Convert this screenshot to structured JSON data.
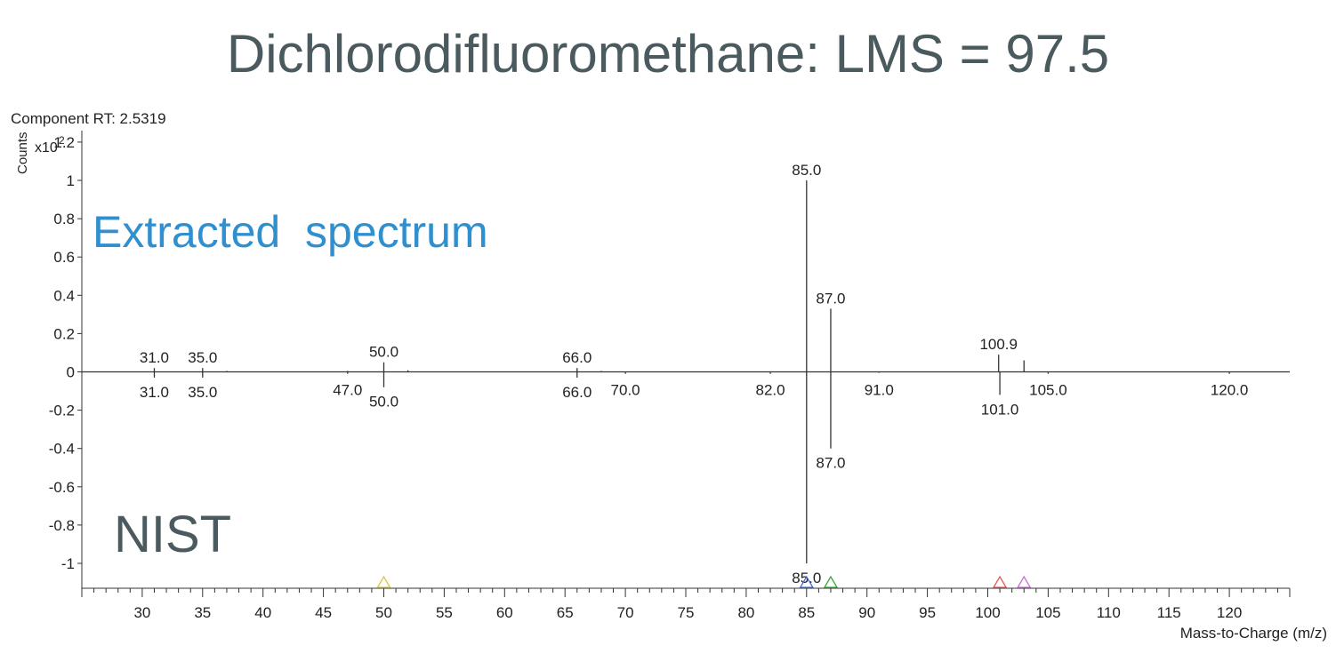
{
  "title": "Dichlorodifluoromethane: LMS = 97.5",
  "component_label": "Component RT: 2.5319",
  "y_axis_label": "Counts",
  "y_scale_label": "x10",
  "y_scale_exp": "2",
  "x_axis_label": "Mass-to-Charge (m/z)",
  "upper_label": "Extracted  spectrum",
  "lower_label": "NIST",
  "colors": {
    "upper_label": "#2f8fcf",
    "lower_label": "#4a5a5e",
    "title": "#4a5a5e",
    "axis": "#333333"
  },
  "chart_data": {
    "type": "bar",
    "xlim": [
      25,
      125
    ],
    "ylim": [
      -1.13,
      1.26
    ],
    "x_ticks": [
      30,
      35,
      40,
      45,
      50,
      55,
      60,
      65,
      70,
      75,
      80,
      85,
      90,
      95,
      100,
      105,
      110,
      115,
      120
    ],
    "y_ticks": [
      {
        "v": 1.2,
        "label": "1.2"
      },
      {
        "v": 1.0,
        "label": "1"
      },
      {
        "v": 0.8,
        "label": "0.8"
      },
      {
        "v": 0.6,
        "label": "0.6"
      },
      {
        "v": 0.4,
        "label": "0.4"
      },
      {
        "v": 0.2,
        "label": "0.2"
      },
      {
        "v": 0.0,
        "label": "0"
      },
      {
        "v": -0.2,
        "label": "-0.2"
      },
      {
        "v": -0.4,
        "label": "-0.4"
      },
      {
        "v": -0.6,
        "label": "-0.6"
      },
      {
        "v": -0.8,
        "label": "-0.8"
      },
      {
        "v": -1.0,
        "label": "-1"
      }
    ],
    "series": [
      {
        "name": "Extracted spectrum",
        "peaks": [
          {
            "mz": 31.0,
            "y": 0.02,
            "label": "31.0"
          },
          {
            "mz": 35.0,
            "y": 0.02,
            "label": "35.0"
          },
          {
            "mz": 37.0,
            "y": 0.005,
            "label": ""
          },
          {
            "mz": 47.0,
            "y": 0.005,
            "label": ""
          },
          {
            "mz": 50.0,
            "y": 0.05,
            "label": "50.0"
          },
          {
            "mz": 52.0,
            "y": 0.008,
            "label": ""
          },
          {
            "mz": 66.0,
            "y": 0.02,
            "label": "66.0"
          },
          {
            "mz": 68.0,
            "y": 0.005,
            "label": ""
          },
          {
            "mz": 85.0,
            "y": 1.0,
            "label": "85.0"
          },
          {
            "mz": 87.0,
            "y": 0.33,
            "label": "87.0"
          },
          {
            "mz": 100.9,
            "y": 0.09,
            "label": "100.9"
          },
          {
            "mz": 103.0,
            "y": 0.06,
            "label": ""
          }
        ]
      },
      {
        "name": "NIST",
        "peaks": [
          {
            "mz": 31.0,
            "y": -0.03,
            "label": "31.0"
          },
          {
            "mz": 35.0,
            "y": -0.03,
            "label": "35.0"
          },
          {
            "mz": 47.0,
            "y": -0.01,
            "label": "47.0"
          },
          {
            "mz": 50.0,
            "y": -0.08,
            "label": "50.0"
          },
          {
            "mz": 66.0,
            "y": -0.03,
            "label": "66.0"
          },
          {
            "mz": 70.0,
            "y": -0.01,
            "label": "70.0"
          },
          {
            "mz": 82.0,
            "y": -0.01,
            "label": "82.0"
          },
          {
            "mz": 85.0,
            "y": -1.0,
            "label": "85.0"
          },
          {
            "mz": 87.0,
            "y": -0.4,
            "label": "87.0"
          },
          {
            "mz": 91.0,
            "y": -0.005,
            "label": "91.0"
          },
          {
            "mz": 101.0,
            "y": -0.12,
            "label": "101.0"
          },
          {
            "mz": 105.0,
            "y": -0.01,
            "label": "105.0"
          },
          {
            "mz": 120.0,
            "y": -0.01,
            "label": "120.0"
          }
        ]
      }
    ],
    "precursor_markers": [
      {
        "mz": 50.0,
        "color": "#d6c84a"
      },
      {
        "mz": 85.0,
        "color": "#4a6fcf"
      },
      {
        "mz": 87.0,
        "color": "#3ba33b"
      },
      {
        "mz": 101.0,
        "color": "#e05a5a"
      },
      {
        "mz": 103.0,
        "color": "#c66fd8"
      }
    ]
  }
}
